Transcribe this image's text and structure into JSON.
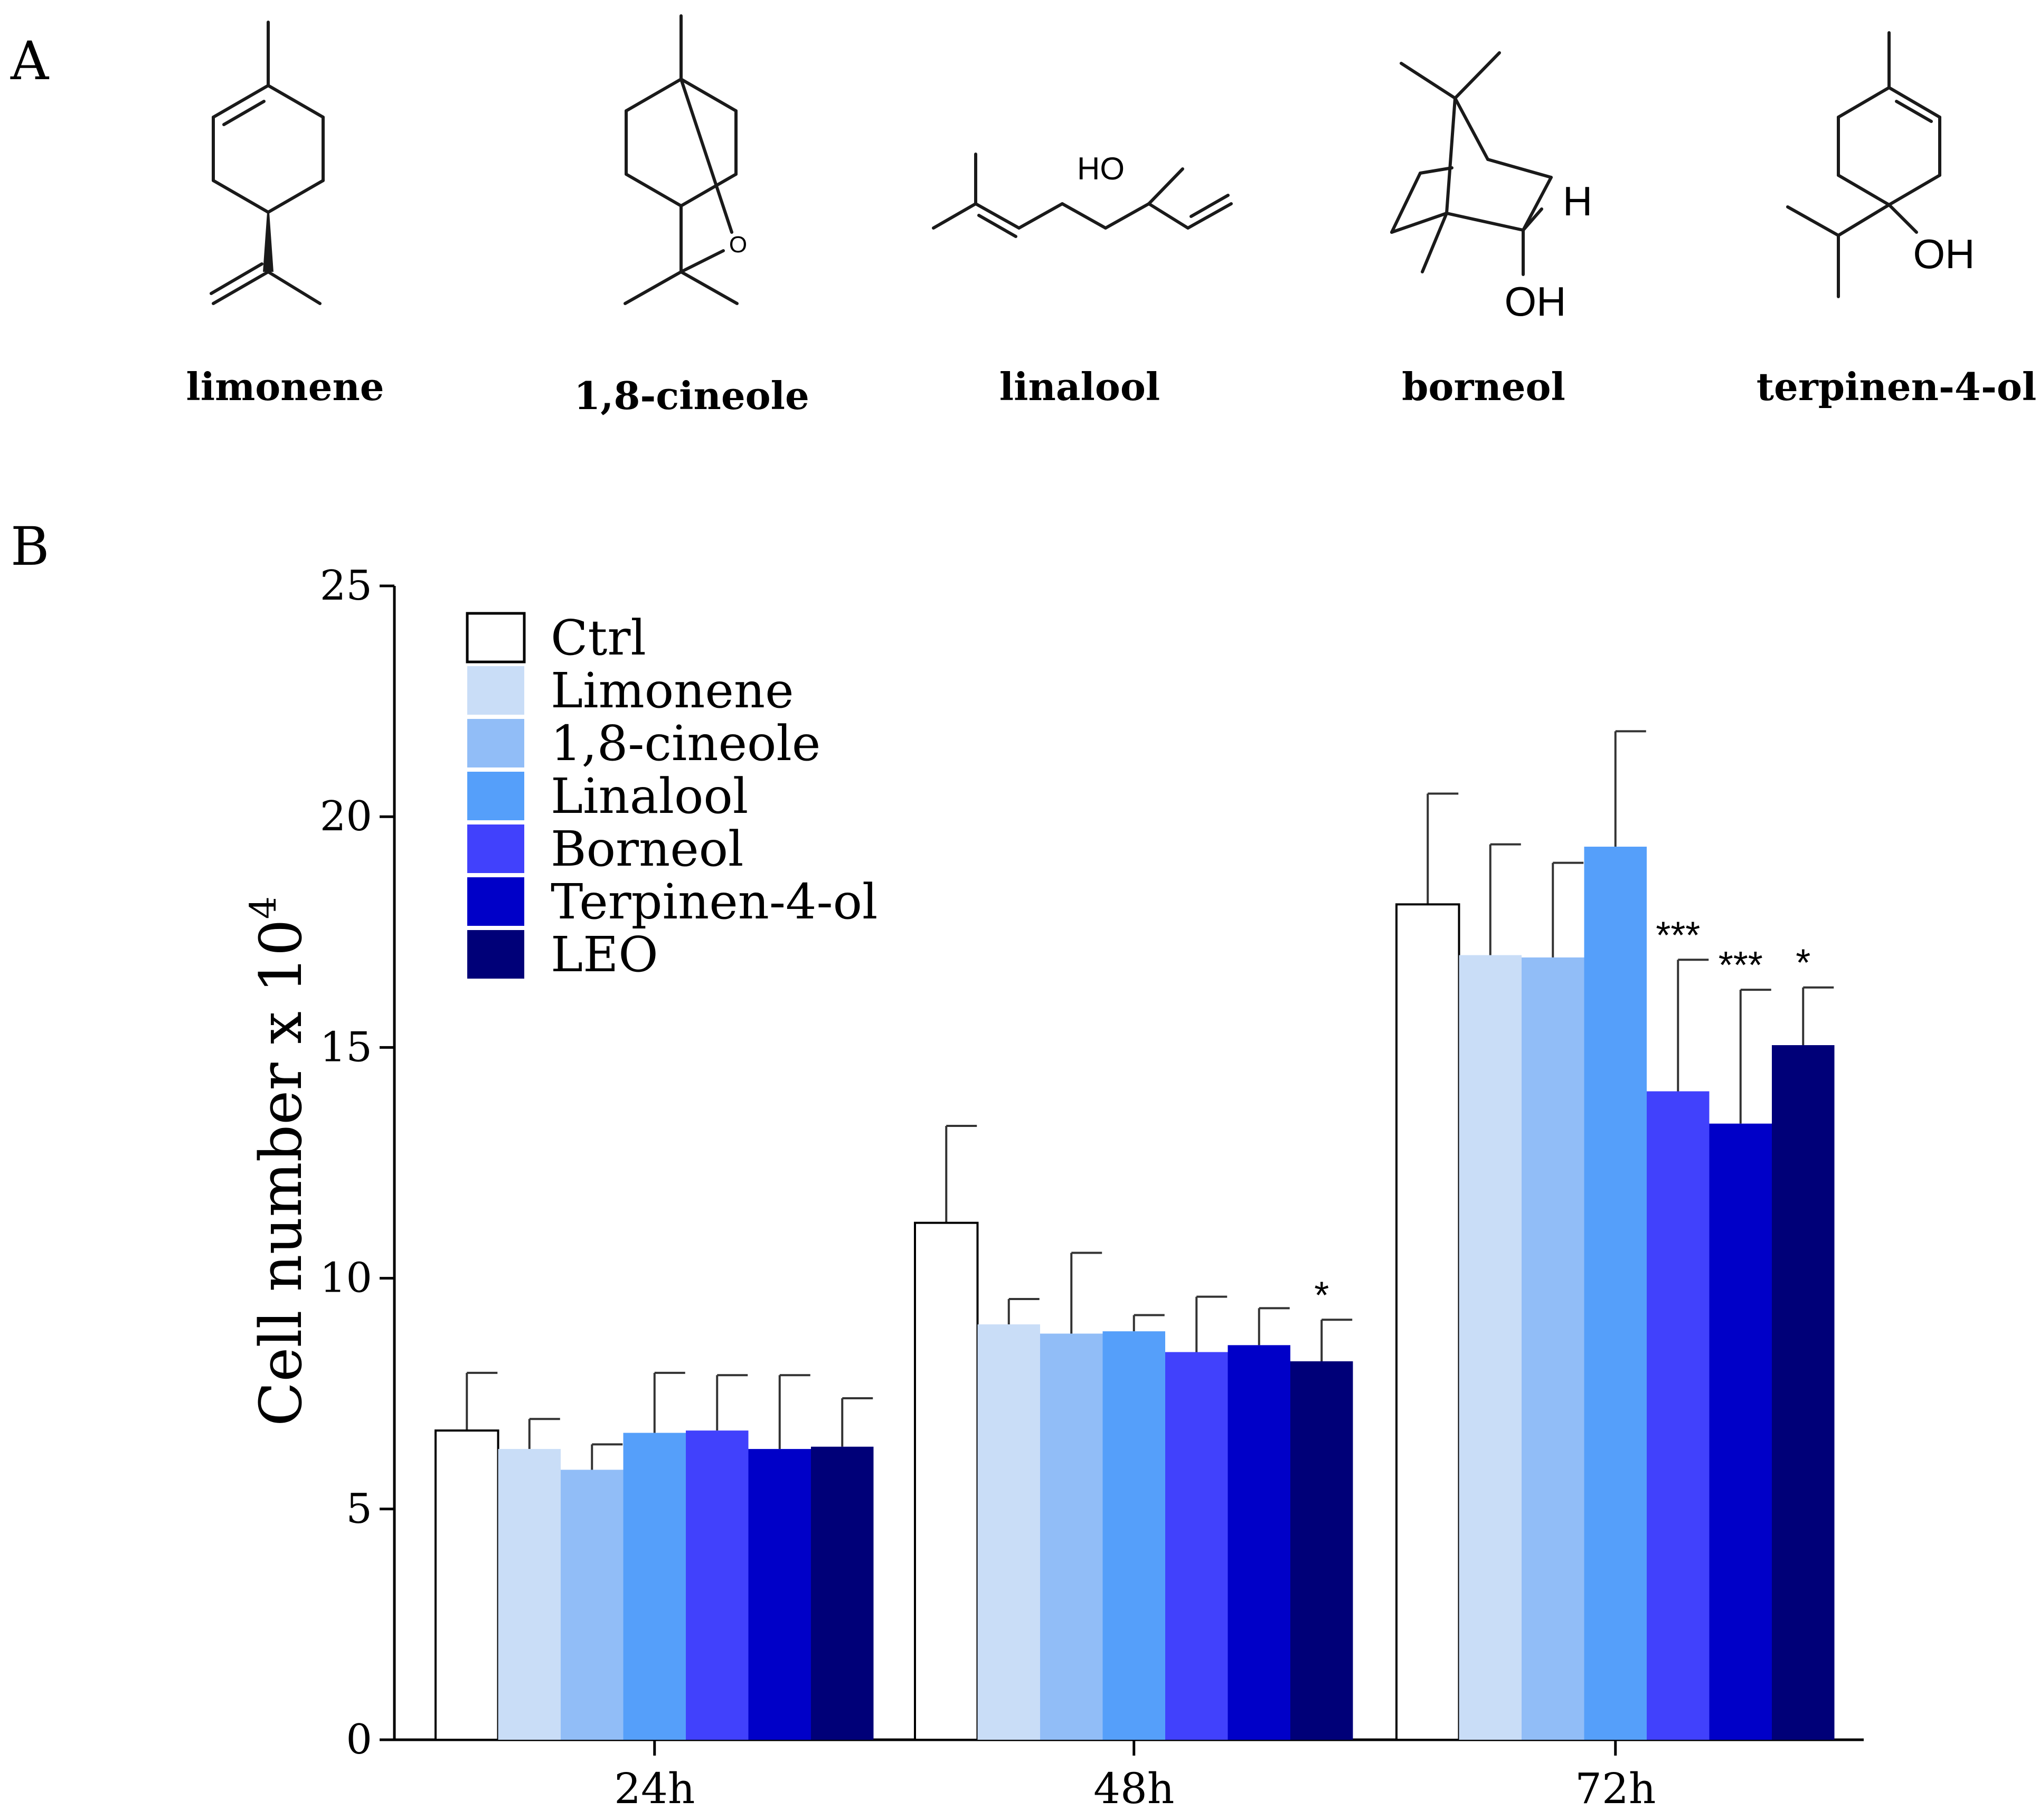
{
  "panel_a": {
    "label": "A",
    "molecules": [
      {
        "name": "limonene",
        "atom_labels": []
      },
      {
        "name": "1,8-cineole",
        "atom_labels": [
          "O"
        ]
      },
      {
        "name": "linalool",
        "atom_labels": [
          "HO"
        ]
      },
      {
        "name": "borneol",
        "atom_labels": [
          "H",
          "OH"
        ]
      },
      {
        "name": "terpinen-4-ol",
        "atom_labels": [
          "OH"
        ]
      }
    ]
  },
  "panel_b": {
    "label": "B"
  },
  "colors": {
    "Ctrl": "#ffffff",
    "Limonene": "#c9ddf7",
    "1,8-cineole": "#91bdf7",
    "Linalool": "#559ffa",
    "Borneol": "#4141fc",
    "Terpinen-4-ol": "#0000c8",
    "LEO": "#000078"
  },
  "chart_data": {
    "type": "bar",
    "title": "",
    "xlabel": "",
    "ylabel": "Cell number x 10",
    "ylabel_exponent": "4",
    "ylim": [
      0,
      25
    ],
    "yticks": [
      "0",
      "5",
      "10",
      "15",
      "20",
      "25"
    ],
    "categories": [
      "24h",
      "48h",
      "72h"
    ],
    "legend": [
      "Ctrl",
      "Limonene",
      "1,8-cineole",
      "Linalool",
      "Borneol",
      "Terpinen-4-ol",
      "LEO"
    ],
    "legend_position": "top-left",
    "series": [
      {
        "name": "Ctrl",
        "values": [
          6.7,
          11.2,
          18.1
        ],
        "errors": [
          1.25,
          2.1,
          2.4
        ],
        "significance": [
          "",
          "",
          ""
        ]
      },
      {
        "name": "Limonene",
        "values": [
          6.3,
          9.0,
          17.0
        ],
        "errors": [
          0.65,
          0.55,
          2.4
        ],
        "significance": [
          "",
          "",
          ""
        ]
      },
      {
        "name": "1,8-cineole",
        "values": [
          5.85,
          8.8,
          16.95
        ],
        "errors": [
          0.55,
          1.75,
          2.05
        ],
        "significance": [
          "",
          "",
          ""
        ]
      },
      {
        "name": "Linalool",
        "values": [
          6.65,
          8.85,
          19.35
        ],
        "errors": [
          1.3,
          0.35,
          2.5
        ],
        "significance": [
          "",
          "",
          ""
        ]
      },
      {
        "name": "Borneol",
        "values": [
          6.7,
          8.4,
          14.05
        ],
        "errors": [
          1.2,
          1.2,
          2.85
        ],
        "significance": [
          "",
          "",
          "***"
        ]
      },
      {
        "name": "Terpinen-4-ol",
        "values": [
          6.3,
          8.55,
          13.35
        ],
        "errors": [
          1.6,
          0.8,
          2.9
        ],
        "significance": [
          "",
          "",
          "***"
        ]
      },
      {
        "name": "LEO",
        "values": [
          6.35,
          8.2,
          15.05
        ],
        "errors": [
          1.05,
          0.9,
          1.25
        ],
        "significance": [
          "",
          "*",
          "*"
        ]
      }
    ]
  }
}
